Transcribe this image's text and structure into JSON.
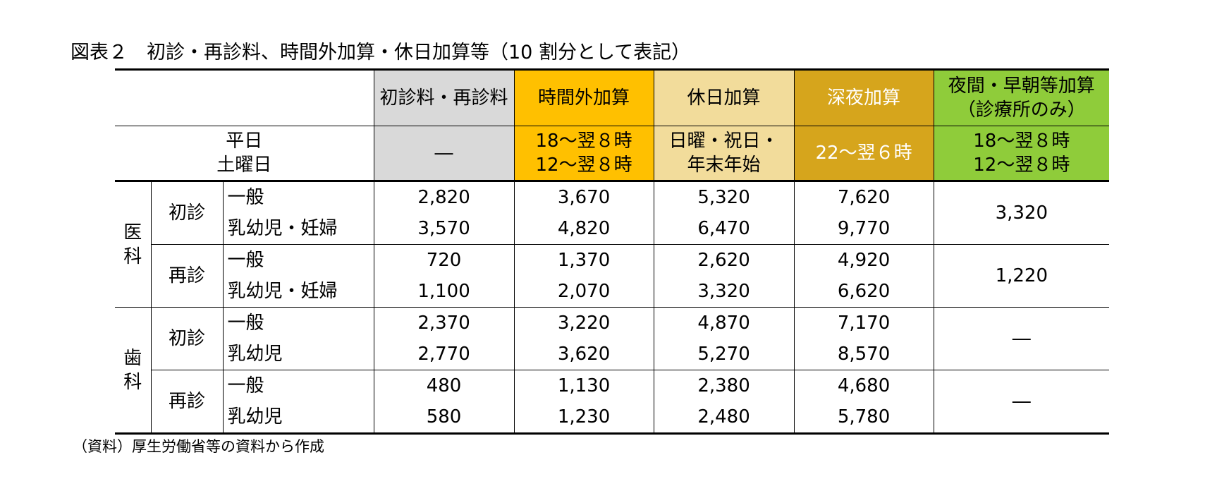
{
  "title": "図表２　初診・再診料、時間外加算・休日加算等（10 割分として表記）",
  "source": "（資料）厚生労働省等の資料から作成",
  "header": {
    "col1": "初診料・再診料",
    "col2": "時間外加算",
    "col3": "休日加算",
    "col4": "深夜加算",
    "col5_line1": "夜間・早朝等加算",
    "col5_line2": "（診療所のみ）"
  },
  "time_row": {
    "label_line1": "平日",
    "label_line2": "土曜日",
    "col1": "―",
    "col2_line1": "18～翌８時",
    "col2_line2": "12～翌８時",
    "col3_line1": "日曜・祝日・",
    "col3_line2": "年末年始",
    "col4": "22～翌６時",
    "col5_line1": "18～翌８時",
    "col5_line2": "12～翌８時"
  },
  "sections": [
    {
      "label_line1": "医",
      "label_line2": "科",
      "groups": [
        {
          "type": "初診",
          "rows": [
            {
              "patient": "一般",
              "values": [
                "2,820",
                "3,670",
                "5,320",
                "7,620"
              ]
            },
            {
              "patient": "乳幼児・妊婦",
              "values": [
                "3,570",
                "4,820",
                "6,470",
                "9,770"
              ]
            }
          ],
          "night_early": "3,320"
        },
        {
          "type": "再診",
          "rows": [
            {
              "patient": "一般",
              "values": [
                "720",
                "1,370",
                "2,620",
                "4,920"
              ]
            },
            {
              "patient": "乳幼児・妊婦",
              "values": [
                "1,100",
                "2,070",
                "3,320",
                "6,620"
              ]
            }
          ],
          "night_early": "1,220"
        }
      ]
    },
    {
      "label_line1": "歯",
      "label_line2": "科",
      "groups": [
        {
          "type": "初診",
          "rows": [
            {
              "patient": "一般",
              "values": [
                "2,370",
                "3,220",
                "4,870",
                "7,170"
              ]
            },
            {
              "patient": "乳幼児",
              "values": [
                "2,770",
                "3,620",
                "5,270",
                "8,570"
              ]
            }
          ],
          "night_early": "―"
        },
        {
          "type": "再診",
          "rows": [
            {
              "patient": "一般",
              "values": [
                "480",
                "1,130",
                "2,380",
                "4,680"
              ]
            },
            {
              "patient": "乳幼児",
              "values": [
                "580",
                "1,230",
                "2,480",
                "5,780"
              ]
            }
          ],
          "night_early": "―"
        }
      ]
    }
  ],
  "colors": {
    "gray": "#d9d9d9",
    "orange": "#ffc000",
    "yellow": "#f2dc9b",
    "gold": "#d6a51c",
    "green": "#8fcc3a"
  }
}
